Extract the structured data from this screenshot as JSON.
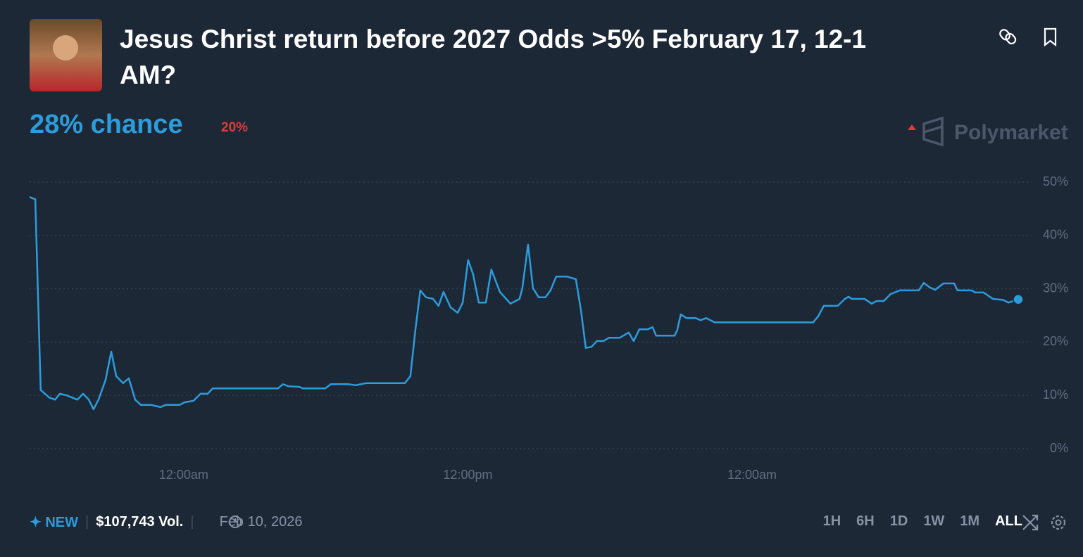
{
  "header": {
    "title": "Jesus Christ return before 2027 Odds >5% February 17, 12-1 AM?",
    "chance": "28% chance",
    "change": "20%",
    "brand": "Polymarket"
  },
  "chart_data": {
    "type": "line",
    "x": [
      -6.51,
      -6.27,
      -6.04,
      -5.68,
      -5.44,
      -5.23,
      -4.94,
      -4.49,
      -4.25,
      -4.01,
      -3.81,
      -3.6,
      -3.3,
      -3.06,
      -2.85,
      -2.56,
      -2.32,
      -2.05,
      -1.81,
      -1.37,
      -0.98,
      -0.77,
      -0.18,
      0.03,
      0.42,
      0.71,
      1.01,
      1.22,
      3.98,
      4.19,
      4.43,
      4.88,
      5.03,
      5.98,
      6.21,
      6.96,
      7.26,
      7.7,
      9.34,
      9.57,
      9.78,
      9.99,
      10.23,
      10.53,
      10.76,
      10.97,
      11.27,
      11.57,
      11.78,
      12.01,
      12.22,
      12.46,
      12.76,
      12.99,
      13.35,
      13.8,
      14.18,
      14.3,
      14.54,
      14.75,
      14.99,
      15.28,
      15.49,
      15.73,
      16.18,
      16.56,
      16.77,
      16.98,
      17.22,
      17.45,
      17.72,
      17.96,
      18.41,
      18.79,
      19.0,
      19.24,
      19.6,
      19.8,
      19.95,
      20.73,
      20.84,
      20.99,
      21.23,
      21.62,
      21.83,
      22.06,
      22.42,
      26.58,
      26.79,
      27.03,
      27.62,
      27.92,
      28.07,
      28.22,
      28.75,
      29.05,
      29.26,
      29.56,
      29.85,
      30.24,
      31.04,
      31.25,
      31.49,
      31.73,
      32.08,
      32.53,
      32.68,
      33.27,
      33.42,
      33.78,
      34.17,
      34.61,
      34.82,
      35.24
    ],
    "series": [
      {
        "color": "#2d9cdb",
        "values": [
          47.2,
          46.8,
          11,
          9.6,
          9.2,
          10.3,
          10,
          9.2,
          10.3,
          9.2,
          7.4,
          9.2,
          12.9,
          18.2,
          13.6,
          12.3,
          13.2,
          9.2,
          8.2,
          8.2,
          7.8,
          8.2,
          8.2,
          8.7,
          9,
          10.3,
          10.3,
          11.3,
          11.3,
          12.1,
          11.7,
          11.6,
          11.3,
          11.3,
          12.1,
          12.1,
          11.9,
          12.3,
          12.3,
          13.6,
          22.2,
          29.7,
          28.4,
          28.1,
          26.8,
          29.4,
          26.5,
          25.5,
          27.4,
          35.4,
          32.7,
          27.4,
          27.4,
          33.6,
          29.4,
          27.2,
          28.1,
          30.1,
          38.3,
          30.1,
          28.4,
          28.4,
          29.7,
          32.3,
          32.3,
          31.8,
          26.1,
          18.9,
          19.1,
          20.2,
          20.2,
          20.8,
          20.8,
          21.8,
          20.2,
          22.4,
          22.4,
          22.8,
          21.2,
          21.2,
          22.2,
          25.2,
          24.5,
          24.5,
          24.1,
          24.5,
          23.7,
          23.7,
          24.8,
          26.8,
          26.8,
          28.1,
          28.5,
          28.1,
          28.1,
          27.2,
          27.7,
          27.7,
          29,
          29.7,
          29.7,
          31.1,
          30.3,
          29.8,
          31,
          31,
          29.7,
          29.7,
          29.3,
          29.3,
          28.1,
          27.9,
          27.4,
          28
        ]
      }
    ],
    "xlim": [
      -6.51,
      35.24
    ],
    "xticks": [
      {
        "value": 0,
        "label": "12:00am"
      },
      {
        "value": 12,
        "label": "12:00pm"
      },
      {
        "value": 24,
        "label": "12:00am"
      }
    ],
    "ylim": [
      0,
      50
    ],
    "yticks": [
      {
        "value": 0,
        "label": "0%"
      },
      {
        "value": 10,
        "label": "10%"
      },
      {
        "value": 20,
        "label": "20%"
      },
      {
        "value": 30,
        "label": "30%"
      },
      {
        "value": 40,
        "label": "40%"
      },
      {
        "value": 50,
        "label": "50%"
      }
    ],
    "grid": true
  },
  "footer": {
    "badge": "NEW",
    "volume": "$107,743 Vol.",
    "date": "Feb 10, 2026",
    "ranges": [
      "1H",
      "6H",
      "1D",
      "1W",
      "1M",
      "ALL"
    ]
  }
}
